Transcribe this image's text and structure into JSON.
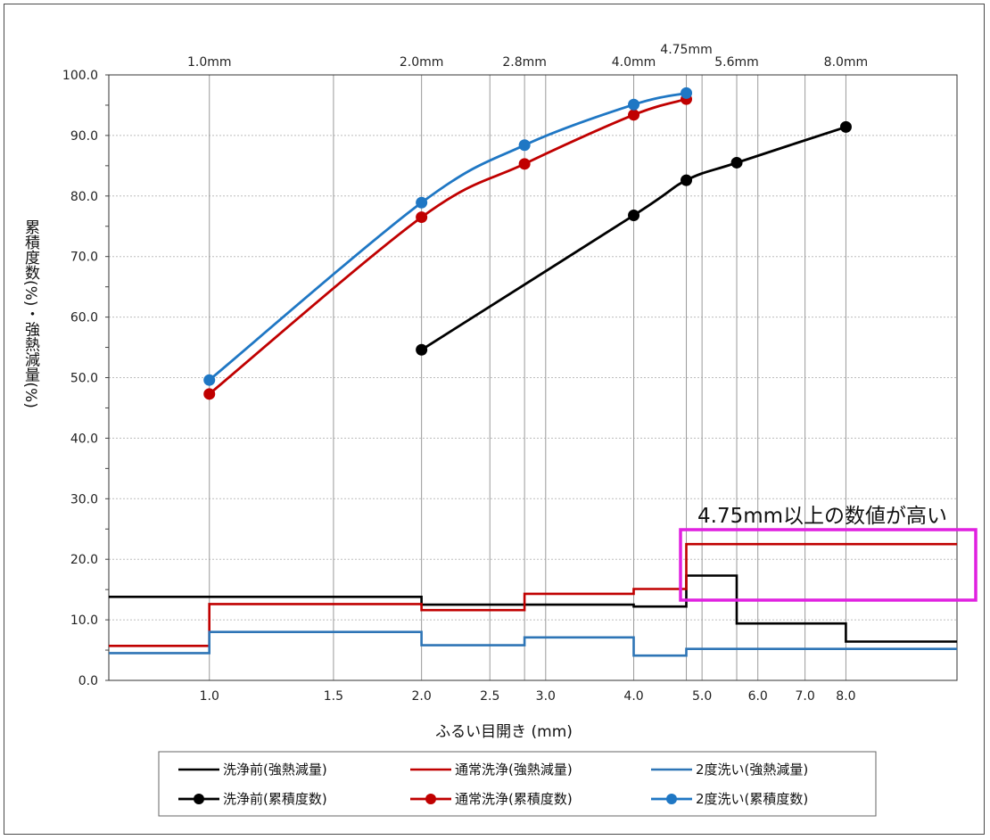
{
  "chart_data": {
    "type": "line",
    "xlabel": "ふるい目開き (mm)",
    "ylabel": "累積度数(%)・強熱減量(%)",
    "x_scale": "log",
    "ylim": [
      0,
      100
    ],
    "y_ticks": [
      "0.0",
      "10.0",
      "20.0",
      "30.0",
      "40.0",
      "50.0",
      "60.0",
      "70.0",
      "80.0",
      "90.0",
      "100.0"
    ],
    "x_bottom_ticks": [
      {
        "value": 1.0,
        "label": "1.0"
      },
      {
        "value": 1.5,
        "label": "1.5"
      },
      {
        "value": 2.0,
        "label": "2.0"
      },
      {
        "value": 2.5,
        "label": "2.5"
      },
      {
        "value": 3.0,
        "label": "3.0"
      },
      {
        "value": 4.0,
        "label": "4.0"
      },
      {
        "value": 5.0,
        "label": "5.0"
      },
      {
        "value": 6.0,
        "label": "6.0"
      },
      {
        "value": 7.0,
        "label": "7.0"
      },
      {
        "value": 8.0,
        "label": "8.0"
      }
    ],
    "x_top_ticks": [
      {
        "value": 1.0,
        "label": "1.0mm"
      },
      {
        "value": 2.0,
        "label": "2.0mm"
      },
      {
        "value": 2.8,
        "label": "2.8mm"
      },
      {
        "value": 4.0,
        "label": "4.0mm"
      },
      {
        "value": 4.75,
        "label": "4.75mm"
      },
      {
        "value": 5.6,
        "label": "5.6mm"
      },
      {
        "value": 8.0,
        "label": "8.0mm"
      }
    ],
    "annotation": {
      "text": "4.75mm以上の数値が高い",
      "color": "#e020e0"
    },
    "series": [
      {
        "name": "洗浄前(強熱減量)",
        "kind": "step",
        "color": "#000000",
        "edges": [
          0.72,
          2.0,
          2.8,
          4.0,
          4.75,
          5.6,
          8.0,
          11.5
        ],
        "values": [
          13.8,
          12.5,
          12.5,
          12.2,
          17.3,
          9.4,
          6.4
        ]
      },
      {
        "name": "通常洗浄(強熱減量)",
        "kind": "step",
        "color": "#c00000",
        "edges": [
          0.72,
          1.0,
          2.0,
          2.8,
          4.0,
          4.75,
          11.5
        ],
        "values": [
          5.7,
          12.6,
          11.6,
          14.3,
          15.1,
          22.5
        ]
      },
      {
        "name": "2度洗い(強熱減量)",
        "kind": "step",
        "color": "#2e75b6",
        "edges": [
          0.72,
          1.0,
          2.0,
          2.8,
          4.0,
          4.75,
          11.5
        ],
        "values": [
          4.5,
          8.0,
          5.8,
          7.1,
          4.1,
          5.2
        ]
      },
      {
        "name": "洗浄前(累積度数)",
        "kind": "line",
        "color": "#000000",
        "x": [
          2.0,
          4.0,
          4.75,
          5.6,
          8.0
        ],
        "y": [
          54.6,
          76.8,
          82.6,
          85.5,
          91.4
        ]
      },
      {
        "name": "通常洗浄(累積度数)",
        "kind": "line",
        "color": "#c00000",
        "x": [
          1.0,
          2.0,
          2.8,
          4.0,
          4.75
        ],
        "y": [
          47.3,
          76.5,
          85.3,
          93.4,
          96.0
        ]
      },
      {
        "name": "2度洗い(累積度数)",
        "kind": "line",
        "color": "#1f77c4",
        "x": [
          1.0,
          2.0,
          2.8,
          4.0,
          4.75
        ],
        "y": [
          49.6,
          78.9,
          88.4,
          95.1,
          97.0
        ]
      }
    ],
    "legend": {
      "placement": "bottom"
    }
  }
}
